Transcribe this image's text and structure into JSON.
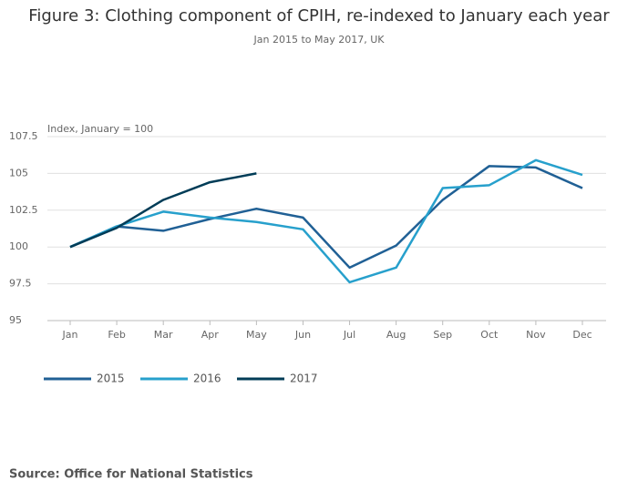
{
  "chart_data": {
    "type": "line",
    "title": "Figure 3: Clothing component of CPIH, re-indexed to January each year",
    "subtitle": "Jan 2015 to May 2017, UK",
    "y_label": "Index, January = 100",
    "source": "Source: Office for National Statistics",
    "categories": [
      "Jan",
      "Feb",
      "Mar",
      "Apr",
      "May",
      "Jun",
      "Jul",
      "Aug",
      "Sep",
      "Oct",
      "Nov",
      "Dec"
    ],
    "series": [
      {
        "name": "2015",
        "color": "#206095",
        "values": [
          100,
          101.4,
          101.1,
          101.9,
          102.6,
          102.0,
          98.6,
          100.1,
          103.2,
          105.5,
          105.4,
          104.0
        ]
      },
      {
        "name": "2016",
        "color": "#27a0cc",
        "values": [
          100,
          101.4,
          102.4,
          102.0,
          101.7,
          101.2,
          97.6,
          98.6,
          104.0,
          104.2,
          105.9,
          104.9
        ]
      },
      {
        "name": "2017",
        "color": "#003c57",
        "values": [
          100,
          101.3,
          103.2,
          104.4,
          105.0,
          null,
          null,
          null,
          null,
          null,
          null,
          null
        ]
      }
    ],
    "ylim": [
      95,
      107.5
    ],
    "yticks": [
      95,
      97.5,
      100,
      102.5,
      105,
      107.5
    ],
    "grid": true,
    "legend": "bottom"
  }
}
